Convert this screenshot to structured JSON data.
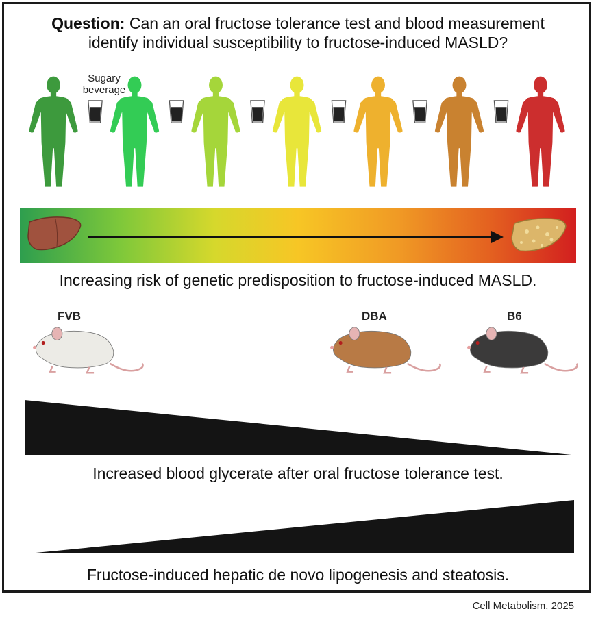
{
  "question": {
    "prefix": "Question:",
    "line1": "Can an oral fructose tolerance test and blood measurement",
    "line2": "identify individual susceptibility to fructose-induced MASLD?"
  },
  "beverage_label_line1": "Sugary",
  "beverage_label_line2": "beverage",
  "people_colors": [
    "#3d9a3d",
    "#33cc55",
    "#a5d63a",
    "#e8e63a",
    "#eeb12e",
    "#c98230",
    "#cc2e2e"
  ],
  "risk_caption": "Increasing risk of genetic predisposition to fructose-induced MASLD.",
  "mice": [
    {
      "strain": "FVB",
      "color": "#ecebe6"
    },
    {
      "strain": "DBA",
      "color": "#b87a45"
    },
    {
      "strain": "B6",
      "color": "#3b3a3a"
    }
  ],
  "glycerate_caption": "Increased blood glycerate after oral fructose tolerance test.",
  "lipogenesis_caption": "Fructose-induced hepatic de novo lipogenesis and steatosis.",
  "citation": "Cell Metabolism, 2025"
}
